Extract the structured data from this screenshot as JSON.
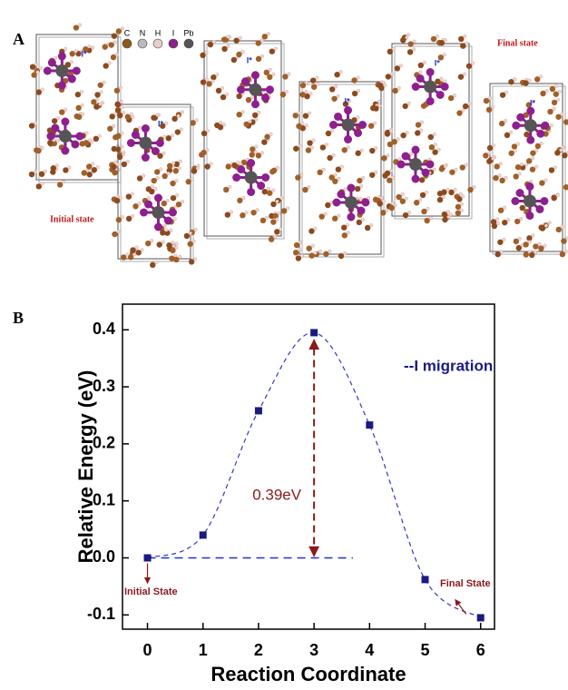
{
  "panel_a": {
    "label": "A",
    "legend": [
      "C",
      "N",
      "H",
      "I",
      "Pb"
    ],
    "initial": "Initial state",
    "final": "Final state",
    "atom_tag": "I*"
  },
  "chart_data": {
    "type": "line",
    "label": "B",
    "xlabel": "Reaction Coordinate",
    "ylabel": "Relative Energy (eV)",
    "series": [
      {
        "name": "--I migration",
        "color": "#1a1a80",
        "curve_color": "#3535c8",
        "x": [
          0,
          1,
          2,
          3,
          4,
          5,
          6
        ],
        "values": [
          0,
          0.04,
          0.258,
          0.395,
          0.233,
          -0.038,
          -0.105
        ]
      }
    ],
    "xlim": [
      -0.45,
      6.25
    ],
    "ylim": [
      -0.125,
      0.445
    ],
    "xticks": [
      0,
      1,
      2,
      3,
      4,
      5,
      6
    ],
    "yticks": [
      -0.1,
      {
        "value": 0,
        "label": "0.0"
      },
      0.1,
      0.2,
      0.3,
      0.4
    ],
    "reference_line": {
      "y": 0,
      "x": [
        0,
        3.7
      ],
      "color": "#2030d8"
    },
    "annotations": {
      "barrier": "0.39eV",
      "initial": "Initial State",
      "final": "Final State",
      "color": "#8b1a1a"
    }
  }
}
